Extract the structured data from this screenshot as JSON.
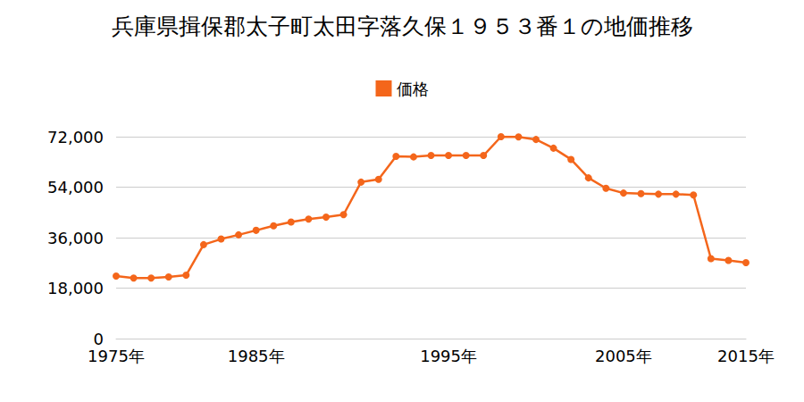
{
  "chart_data": {
    "type": "line",
    "title": "兵庫県揖保郡太子町太田字落久保１９５３番１の地価推移",
    "categories": [
      "1975年",
      null,
      null,
      null,
      null,
      null,
      null,
      null,
      "1985年",
      null,
      null,
      null,
      null,
      null,
      null,
      null,
      null,
      null,
      null,
      "1995年",
      null,
      null,
      null,
      null,
      null,
      null,
      null,
      null,
      null,
      "2005年",
      null,
      null,
      null,
      null,
      null,
      null,
      "2015年"
    ],
    "series": [
      {
        "name": "価格",
        "color": "#f4661b",
        "marker": "circle",
        "values": [
          22300,
          21600,
          21600,
          22000,
          22600,
          33500,
          35500,
          37000,
          38600,
          40200,
          41600,
          42600,
          43300,
          44200,
          55800,
          56800,
          65000,
          64800,
          65300,
          65300,
          65300,
          65300,
          72000,
          71900,
          71000,
          67900,
          63900,
          57300,
          53600,
          51900,
          51700,
          51500,
          51500,
          51200,
          28500,
          27900,
          27100
        ]
      }
    ],
    "ylim": [
      0,
      72000
    ],
    "yticks": [
      0,
      {
        "value": 18000,
        "label": "18,000"
      },
      {
        "value": 36000,
        "label": "36,000"
      },
      {
        "value": 54000,
        "label": "54,000"
      },
      {
        "value": 72000,
        "label": "72,000"
      }
    ],
    "grid": true,
    "legend": "top"
  }
}
